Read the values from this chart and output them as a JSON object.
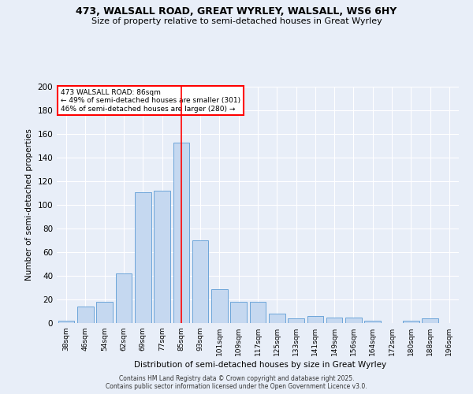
{
  "title": "473, WALSALL ROAD, GREAT WYRLEY, WALSALL, WS6 6HY",
  "subtitle": "Size of property relative to semi-detached houses in Great Wyrley",
  "xlabel": "Distribution of semi-detached houses by size in Great Wyrley",
  "ylabel": "Number of semi-detached properties",
  "bar_labels": [
    "38sqm",
    "46sqm",
    "54sqm",
    "62sqm",
    "69sqm",
    "77sqm",
    "85sqm",
    "93sqm",
    "101sqm",
    "109sqm",
    "117sqm",
    "125sqm",
    "133sqm",
    "141sqm",
    "149sqm",
    "156sqm",
    "164sqm",
    "172sqm",
    "180sqm",
    "188sqm",
    "196sqm"
  ],
  "bar_values": [
    2,
    14,
    18,
    42,
    111,
    112,
    153,
    70,
    29,
    18,
    18,
    8,
    4,
    6,
    5,
    5,
    2,
    0,
    2,
    4,
    0
  ],
  "bar_color": "#c5d8f0",
  "bar_edge_color": "#5b9bd5",
  "ylim": [
    0,
    200
  ],
  "yticks": [
    0,
    20,
    40,
    60,
    80,
    100,
    120,
    140,
    160,
    180,
    200
  ],
  "vline_index": 6,
  "vline_color": "red",
  "annotation_title": "473 WALSALL ROAD: 86sqm",
  "annotation_line1": "← 49% of semi-detached houses are smaller (301)",
  "annotation_line2": "46% of semi-detached houses are larger (280) →",
  "annotation_box_color": "white",
  "annotation_box_edge": "red",
  "footer": "Contains HM Land Registry data © Crown copyright and database right 2025.\nContains public sector information licensed under the Open Government Licence v3.0.",
  "background_color": "#e8eef8",
  "grid_color": "white",
  "title_fontsize": 9,
  "subtitle_fontsize": 8
}
